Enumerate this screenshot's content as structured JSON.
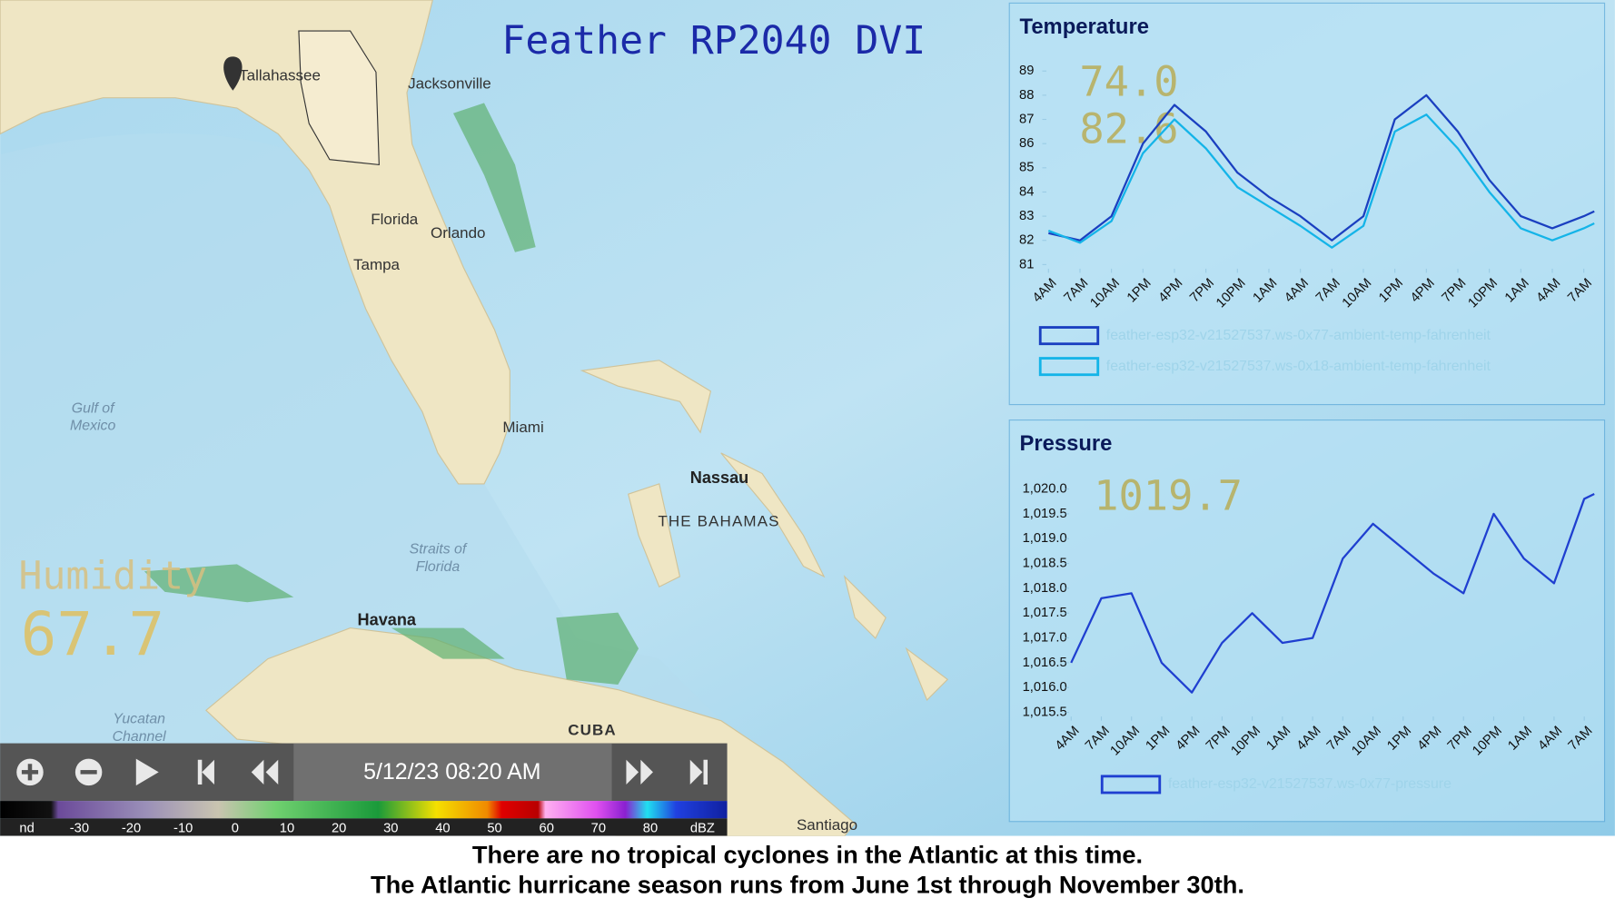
{
  "title": "Feather RP2040 DVI",
  "map_labels": {
    "tallahassee": "Tallahassee",
    "jacksonville": "Jacksonville",
    "florida": "Florida",
    "orlando": "Orlando",
    "tampa": "Tampa",
    "gulf": [
      "Gulf of",
      "Mexico"
    ],
    "miami": "Miami",
    "nassau": "Nassau",
    "bahamas": "THE BAHAMAS",
    "straits": [
      "Straits of",
      "Florida"
    ],
    "havana": "Havana",
    "yucatan": [
      "Yucatan",
      "Channel"
    ],
    "cuba": "CUBA",
    "santiago": "Santiago"
  },
  "humidity": {
    "label": "Humidity",
    "value": "67.7"
  },
  "player": {
    "timestamp": "5/12/23 08:20 AM"
  },
  "radar_legend": {
    "no_data": "nd",
    "values": [
      -30,
      -20,
      -10,
      0,
      10,
      20,
      30,
      40,
      50,
      60,
      70,
      80
    ],
    "unit": "dBZ"
  },
  "chart_data": [
    {
      "type": "line",
      "title": "Temperature",
      "readouts": [
        "74.0",
        "82.6"
      ],
      "x": [
        0,
        3,
        6,
        9,
        12,
        15,
        18,
        21,
        24,
        27,
        30,
        33,
        36,
        39,
        42,
        45,
        48,
        51,
        52
      ],
      "xlim": [
        0,
        52
      ],
      "xticks": [
        {
          "value": 0,
          "label": "4AM"
        },
        {
          "value": 3,
          "label": "7AM"
        },
        {
          "value": 6,
          "label": "10AM"
        },
        {
          "value": 9,
          "label": "1PM"
        },
        {
          "value": 12,
          "label": "4PM"
        },
        {
          "value": 15,
          "label": "7PM"
        },
        {
          "value": 18,
          "label": "10PM"
        },
        {
          "value": 21,
          "label": "1AM"
        },
        {
          "value": 24,
          "label": "4AM"
        },
        {
          "value": 27,
          "label": "7AM"
        },
        {
          "value": 30,
          "label": "10AM"
        },
        {
          "value": 33,
          "label": "1PM"
        },
        {
          "value": 36,
          "label": "4PM"
        },
        {
          "value": 39,
          "label": "7PM"
        },
        {
          "value": 42,
          "label": "10PM"
        },
        {
          "value": 45,
          "label": "1AM"
        },
        {
          "value": 48,
          "label": "4AM"
        },
        {
          "value": 51,
          "label": "7AM"
        }
      ],
      "ylim": [
        81,
        89
      ],
      "yticks": [
        81,
        82,
        83,
        84,
        85,
        86,
        87,
        88,
        89
      ],
      "legend": "bottom",
      "series": [
        {
          "name": "feather-esp32-v21527537.ws-0x77-ambient-temp-fahrenheit",
          "color": "#1a3fc0",
          "values": [
            82.3,
            82.0,
            83.0,
            86.0,
            87.6,
            86.5,
            84.8,
            83.8,
            83.0,
            82.0,
            83.0,
            87.0,
            88.0,
            86.5,
            84.5,
            83.0,
            82.5,
            83.0,
            83.2
          ]
        },
        {
          "name": "feather-esp32-v21527537.ws-0x18-ambient-temp-fahrenheit",
          "color": "#14b4e8",
          "values": [
            82.4,
            81.9,
            82.8,
            85.6,
            87.0,
            85.8,
            84.2,
            83.4,
            82.6,
            81.7,
            82.6,
            86.5,
            87.2,
            85.8,
            84.0,
            82.5,
            82.0,
            82.5,
            82.7
          ]
        }
      ]
    },
    {
      "type": "line",
      "title": "Pressure",
      "readouts": [
        "1019.7"
      ],
      "x": [
        0,
        3,
        6,
        9,
        12,
        15,
        18,
        21,
        24,
        27,
        30,
        33,
        36,
        39,
        42,
        45,
        48,
        51,
        52
      ],
      "xlim": [
        0,
        52
      ],
      "xticks": [
        {
          "value": 0,
          "label": "4AM"
        },
        {
          "value": 3,
          "label": "7AM"
        },
        {
          "value": 6,
          "label": "10AM"
        },
        {
          "value": 9,
          "label": "1PM"
        },
        {
          "value": 12,
          "label": "4PM"
        },
        {
          "value": 15,
          "label": "7PM"
        },
        {
          "value": 18,
          "label": "10PM"
        },
        {
          "value": 21,
          "label": "1AM"
        },
        {
          "value": 24,
          "label": "4AM"
        },
        {
          "value": 27,
          "label": "7AM"
        },
        {
          "value": 30,
          "label": "10AM"
        },
        {
          "value": 33,
          "label": "1PM"
        },
        {
          "value": 36,
          "label": "4PM"
        },
        {
          "value": 39,
          "label": "7PM"
        },
        {
          "value": 42,
          "label": "10PM"
        },
        {
          "value": 45,
          "label": "1AM"
        },
        {
          "value": 48,
          "label": "4AM"
        },
        {
          "value": 51,
          "label": "7AM"
        }
      ],
      "ylim": [
        1015.5,
        1020.0
      ],
      "yticks": [
        {
          "value": 1015.5,
          "label": "1,015.5"
        },
        {
          "value": 1016.0,
          "label": "1,016.0"
        },
        {
          "value": 1016.5,
          "label": "1,016.5"
        },
        {
          "value": 1017.0,
          "label": "1,017.0"
        },
        {
          "value": 1017.5,
          "label": "1,017.5"
        },
        {
          "value": 1018.0,
          "label": "1,018.0"
        },
        {
          "value": 1018.5,
          "label": "1,018.5"
        },
        {
          "value": 1019.0,
          "label": "1,019.0"
        },
        {
          "value": 1019.5,
          "label": "1,019.5"
        },
        {
          "value": 1020.0,
          "label": "1,020.0"
        }
      ],
      "legend": "bottom",
      "series": [
        {
          "name": "feather-esp32-v21527537.ws-0x77-pressure",
          "color": "#1f3fd0",
          "values": [
            1016.5,
            1017.8,
            1017.9,
            1016.5,
            1015.9,
            1016.9,
            1017.5,
            1016.9,
            1017.0,
            1018.6,
            1019.3,
            1018.8,
            1018.3,
            1017.9,
            1019.5,
            1018.6,
            1018.1,
            1019.8,
            1019.9
          ]
        }
      ]
    }
  ],
  "footer": [
    "There are no tropical cyclones in the Atlantic at this time.",
    "The Atlantic hurricane season runs from June 1st through November 30th."
  ]
}
